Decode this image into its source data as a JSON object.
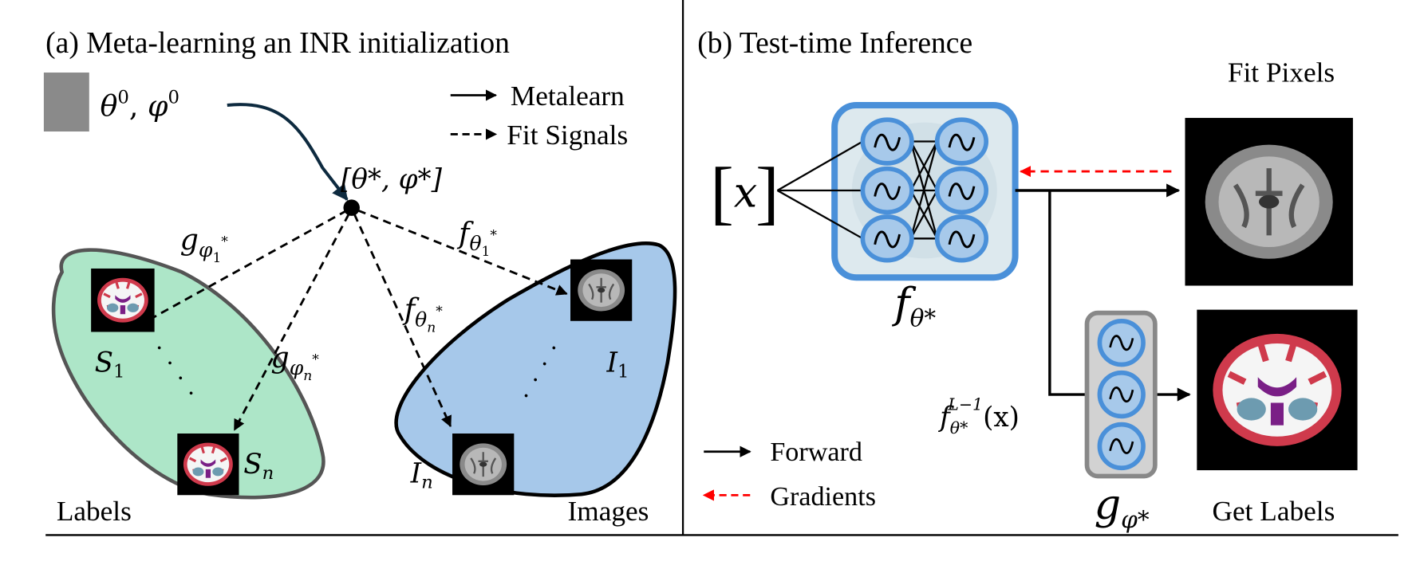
{
  "panel_a": {
    "title": "(a) Meta-learning an INR initialization",
    "init_params": {
      "theta": "θ",
      "theta_sup": "0",
      "sep": ", ",
      "phi": "φ",
      "phi_sup": "0"
    },
    "meta_params": "[θ*, φ*]",
    "legend": [
      {
        "label": "Metalearn",
        "style": "solid"
      },
      {
        "label": "Fit Signals",
        "style": "dashed"
      }
    ],
    "edges": {
      "g1": {
        "base": "g",
        "sub": "φ",
        "subsub": "1",
        "sup": "*"
      },
      "gn": {
        "base": "g",
        "sub": "φ",
        "subsub": "n",
        "sup": "*"
      },
      "f1": {
        "base": "f",
        "sub": "θ",
        "subsub": "1",
        "sup": "*"
      },
      "fn": {
        "base": "f",
        "sub": "θ",
        "subsub": "n",
        "sup": "*"
      }
    },
    "nodes": {
      "s1": {
        "base": "S",
        "sub": "1"
      },
      "sn": {
        "base": "S",
        "sub": "n"
      },
      "i1": {
        "base": "I",
        "sub": "1"
      },
      "in": {
        "base": "I",
        "sub": "n"
      }
    },
    "group_labels": {
      "labels": "Labels",
      "images": "Images"
    },
    "ellipsis": "· · · ·"
  },
  "panel_b": {
    "title": "(b) Test-time Inference",
    "input": {
      "open": "[",
      "var": "x",
      "close": "]"
    },
    "network_f": {
      "base": "f",
      "sub": "θ*"
    },
    "network_g": {
      "base": "g",
      "sub": "φ*"
    },
    "feature": {
      "base": "f",
      "sub": "θ*",
      "sup": "L−1",
      "arg": "(x)"
    },
    "outputs": {
      "pixels": "Fit Pixels",
      "labels": "Get Labels"
    },
    "legend": [
      {
        "label": "Forward",
        "color": "#000000",
        "style": "solid"
      },
      {
        "label": "Gradients",
        "color": "#ff0000",
        "style": "dashed"
      }
    ]
  },
  "colors": {
    "labels_region": "#ade6c8",
    "images_region": "#a6c8ea",
    "network_border": "#4a90d9",
    "gradient": "#ff0000",
    "metalearn_arrow": "#0d2a3f"
  }
}
